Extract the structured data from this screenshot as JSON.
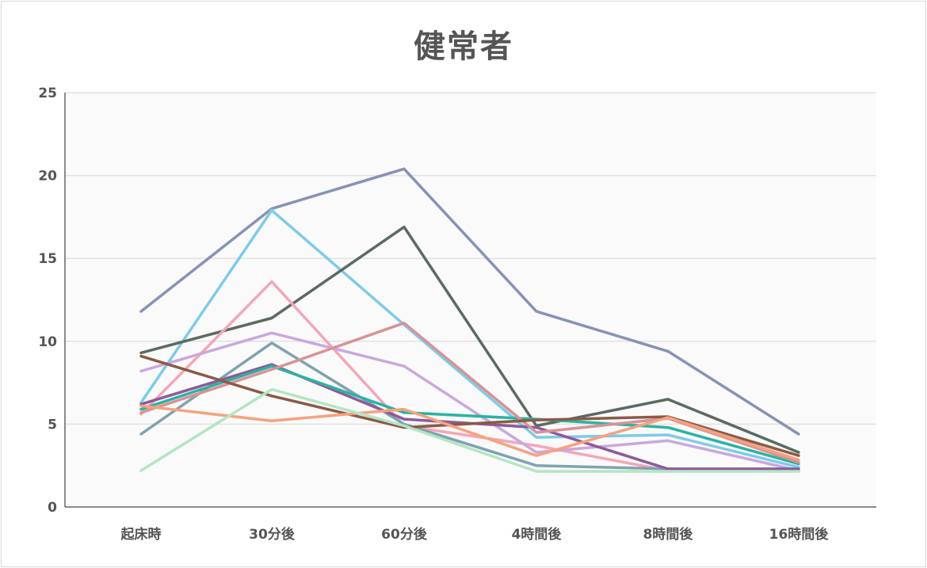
{
  "chart_data": {
    "type": "line",
    "title": "健常者",
    "xlabel": "",
    "ylabel": "",
    "categories": [
      "起床時",
      "30分後",
      "60分後",
      "4時間後",
      "8時間後",
      "16時間後"
    ],
    "ylim": [
      0,
      25
    ],
    "yticks": [
      0,
      5,
      10,
      15,
      20,
      25
    ],
    "grid": true,
    "legend": "none",
    "series": [
      {
        "color": "#8892b8",
        "values": [
          11.8,
          18.0,
          20.4,
          11.8,
          9.4,
          4.4
        ]
      },
      {
        "color": "#7ecbea",
        "values": [
          6.3,
          17.9,
          11.0,
          4.2,
          4.35,
          2.4
        ]
      },
      {
        "color": "#5a6b62",
        "values": [
          9.3,
          11.4,
          16.9,
          4.9,
          6.5,
          3.3
        ]
      },
      {
        "color": "#f4a6b8",
        "values": [
          5.6,
          13.6,
          4.9,
          3.7,
          2.2,
          2.2
        ]
      },
      {
        "color": "#c9a8df",
        "values": [
          8.2,
          10.5,
          8.5,
          3.3,
          4.0,
          2.2
        ]
      },
      {
        "color": "#7fa3b0",
        "values": [
          4.4,
          9.9,
          5.0,
          2.5,
          2.3,
          2.2
        ]
      },
      {
        "color": "#8e5a9c",
        "values": [
          6.2,
          8.6,
          5.3,
          4.8,
          2.3,
          2.3
        ]
      },
      {
        "color": "#2bb3a3",
        "values": [
          5.9,
          8.5,
          5.7,
          5.3,
          4.8,
          2.6
        ]
      },
      {
        "color": "#d99294",
        "values": [
          5.7,
          8.3,
          11.1,
          4.5,
          5.35,
          2.7
        ]
      },
      {
        "color": "#8b5a45",
        "values": [
          9.1,
          6.7,
          4.8,
          5.25,
          5.45,
          3.1
        ]
      },
      {
        "color": "#f6a27e",
        "values": [
          6.1,
          5.2,
          5.9,
          3.1,
          5.4,
          2.85
        ]
      },
      {
        "color": "#b3e6c4",
        "values": [
          2.2,
          7.1,
          4.9,
          2.15,
          2.15,
          2.15
        ]
      }
    ]
  }
}
